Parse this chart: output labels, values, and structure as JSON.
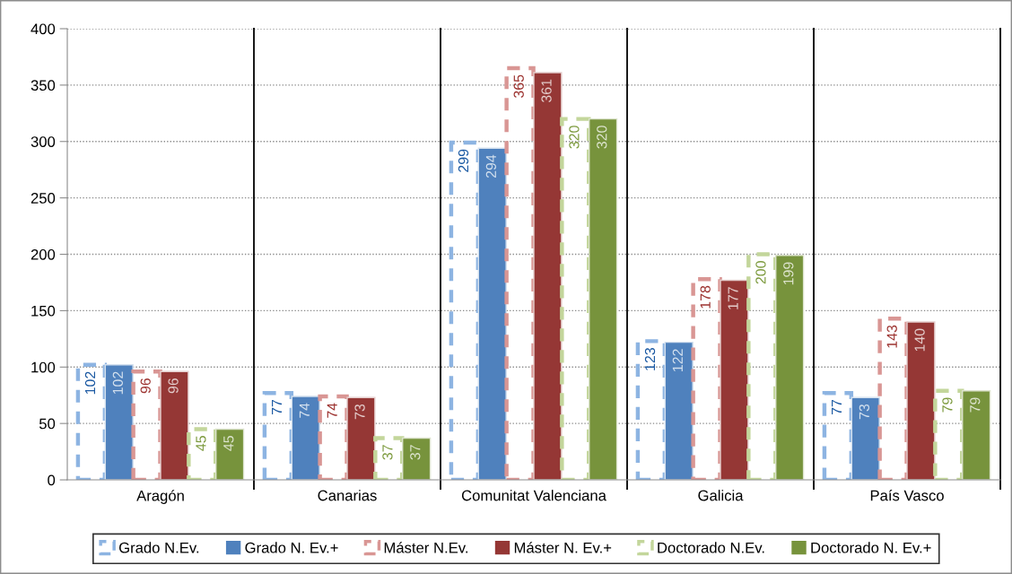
{
  "chart_data": {
    "type": "bar",
    "categories": [
      "Aragón",
      "Canarias",
      "Comunitat Valenciana",
      "Galicia",
      "País Vasco"
    ],
    "series": [
      {
        "name": "Grado N.Ev.",
        "color": "#8db4e2",
        "line_style": "dashed",
        "values": [
          102,
          77,
          299,
          123,
          77
        ]
      },
      {
        "name": "Grado N. Ev.+",
        "color": "#4f81bd",
        "values": [
          102,
          74,
          294,
          122,
          73
        ]
      },
      {
        "name": "Máster N.Ev.",
        "color": "#d99694",
        "line_style": "dashed",
        "values": [
          96,
          74,
          365,
          178,
          143
        ]
      },
      {
        "name": "Máster N. Ev.+",
        "color": "#953735",
        "values": [
          96,
          73,
          361,
          177,
          140
        ]
      },
      {
        "name": "Doctorado N.Ev.",
        "color": "#c3d69b",
        "line_style": "dashed",
        "values": [
          45,
          37,
          320,
          200,
          79
        ]
      },
      {
        "name": "Doctorado N. Ev.+",
        "color": "#77933c",
        "values": [
          45,
          37,
          320,
          199,
          79
        ]
      }
    ],
    "ylim": [
      0,
      400
    ],
    "yticks": [
      0,
      50,
      100,
      150,
      200,
      250,
      300,
      350,
      400
    ],
    "grid": true,
    "legend": "bottom",
    "data_labels": true
  }
}
